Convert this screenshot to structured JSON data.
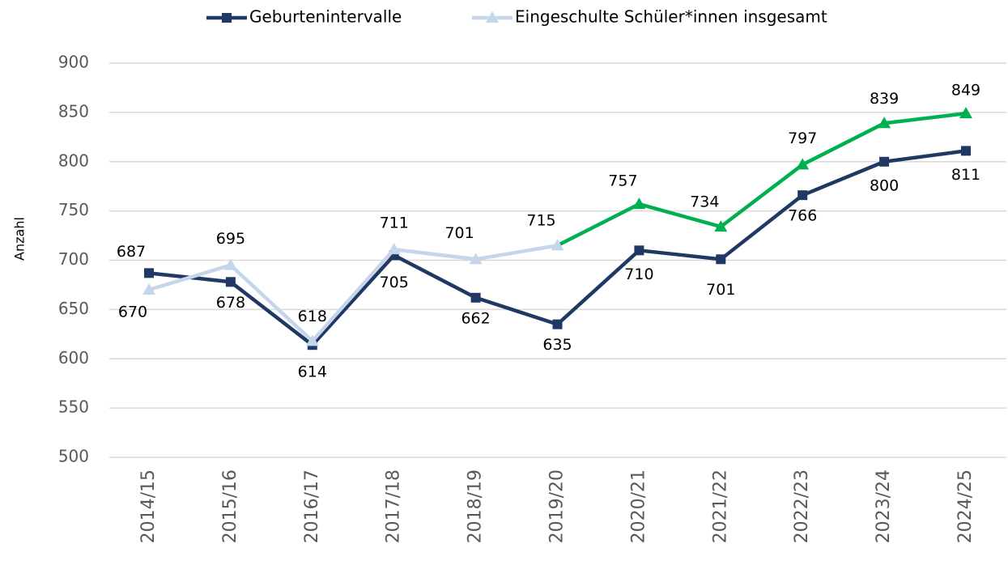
{
  "chart_data": {
    "type": "line",
    "y_axis_label": "Anzahl",
    "categories": [
      "2014/15",
      "2015/16",
      "2016/17",
      "2017/18",
      "2018/19",
      "2019/20",
      "2020/21",
      "2021/22",
      "2022/23",
      "2023/24",
      "2024/25"
    ],
    "series": [
      {
        "name": "Geburtenintervalle",
        "color": "#1f3864",
        "marker": "square",
        "values": [
          687,
          678,
          614,
          705,
          662,
          635,
          710,
          701,
          766,
          800,
          811
        ]
      },
      {
        "name": "Eingeschulte Schüler*innen insgesamt",
        "color": "#c5d5ea",
        "marker": "triangle",
        "values": [
          670,
          695,
          618,
          711,
          701,
          715,
          757,
          734,
          797,
          839,
          849
        ],
        "point_colors": [
          "#c5d5ea",
          "#c5d5ea",
          "#c5d5ea",
          "#c5d5ea",
          "#c5d5ea",
          "#c5d5ea",
          "#00b050",
          "#00b050",
          "#00b050",
          "#00b050",
          "#00b050"
        ]
      }
    ],
    "ylim": [
      500,
      900
    ],
    "yticks": [
      500,
      550,
      600,
      650,
      700,
      750,
      800,
      850,
      900
    ],
    "grid": true,
    "legend": "top"
  }
}
